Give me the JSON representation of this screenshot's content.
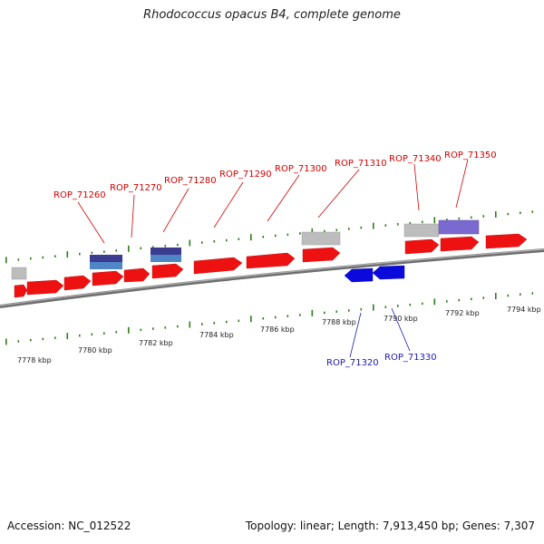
{
  "header": {
    "title": "Rhodococcus opacus B4, complete genome"
  },
  "footer": {
    "accession": "Accession: NC_012522",
    "summary": "Topology: linear; Length: 7,913,450 bp; Genes: 7,307"
  },
  "axis": {
    "tick_labels": [
      "7778 kbp",
      "7780 kbp",
      "7782 kbp",
      "7784 kbp",
      "7786 kbp",
      "7788 kbp",
      "7790 kbp",
      "7792 kbp",
      "7794 kbp"
    ]
  },
  "genes_forward": [
    "ROP_71260",
    "ROP_71270",
    "ROP_71280",
    "ROP_71290",
    "ROP_71300",
    "ROP_71310",
    "ROP_71340",
    "ROP_71350"
  ],
  "genes_reverse": [
    "ROP_71320",
    "ROP_71330"
  ],
  "colors": {
    "gene_forward": "#ee1111",
    "gene_reverse": "#0a0adc",
    "label_forward": "#d40000",
    "label_reverse": "#1a1ab4",
    "feature_gray": "#bdbdbd",
    "feature_navy": "#3b3b8f",
    "feature_steel": "#4f86c6",
    "feature_lavender": "#7a6ad0",
    "tick": "#2e7d1a",
    "backbone": "#7a7a7a"
  }
}
